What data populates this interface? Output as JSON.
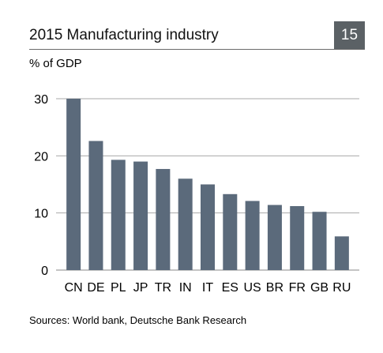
{
  "header": {
    "title": "2015 Manufacturing industry",
    "badge": "15"
  },
  "chart_data": {
    "type": "bar",
    "title": "2015 Manufacturing industry",
    "ylabel": "% of GDP",
    "xlabel": "",
    "categories": [
      "CN",
      "DE",
      "PL",
      "JP",
      "TR",
      "IN",
      "IT",
      "ES",
      "US",
      "BR",
      "FR",
      "GB",
      "RU"
    ],
    "values": [
      30.0,
      22.6,
      19.3,
      19.0,
      17.7,
      16.0,
      15.0,
      13.3,
      12.1,
      11.4,
      11.2,
      10.2,
      5.9
    ],
    "ylim": [
      0,
      30
    ],
    "yticks": [
      "0",
      "10",
      "20",
      "30"
    ],
    "grid": true,
    "bar_color": "#5b6a7b"
  },
  "source": "Sources: World bank, Deutsche Bank Research"
}
